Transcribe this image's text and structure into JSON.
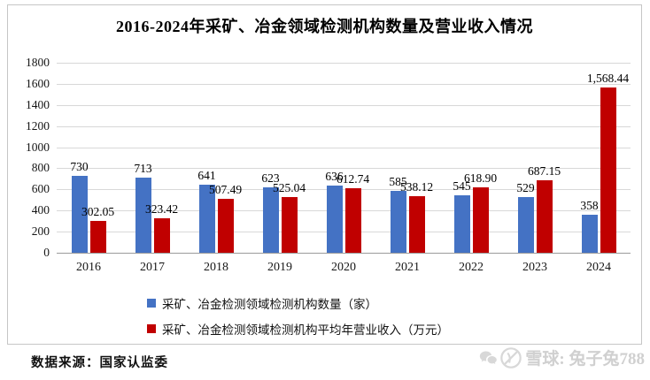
{
  "source_note": "数据来源：国家认监委",
  "watermark": {
    "text": "雪球: 兔子兔788"
  },
  "chart_data": {
    "type": "bar",
    "title": "2016-2024年采矿、冶金领域检测机构数量及营业收入情况",
    "categories": [
      "2016",
      "2017",
      "2018",
      "2019",
      "2020",
      "2021",
      "2022",
      "2023",
      "2024"
    ],
    "series": [
      {
        "name": "采矿、冶金检测领域检测机构数量（家）",
        "color": "#4472C4",
        "values": [
          730,
          713,
          641,
          623,
          636,
          585,
          545,
          529,
          358
        ],
        "labels": [
          "730",
          "713",
          "641",
          "623",
          "636",
          "585",
          "545",
          "529",
          "358"
        ]
      },
      {
        "name": "采矿、冶金检测领域检测机构平均年营业收入（万元）",
        "color": "#C00000",
        "values": [
          302.05,
          323.42,
          507.49,
          525.04,
          612.74,
          538.12,
          618.9,
          687.15,
          1568.44
        ],
        "labels": [
          "302.05",
          "323.42",
          "507.49",
          "525.04",
          "612.74",
          "538.12",
          "618.90",
          "687.15",
          "1,568.44"
        ]
      }
    ],
    "xlabel": "",
    "ylabel": "",
    "ylim": [
      0,
      1800
    ],
    "y_ticks": [
      0,
      200,
      400,
      600,
      800,
      1000,
      1200,
      1400,
      1600,
      1800
    ],
    "grid": true,
    "legend_position": "bottom"
  }
}
